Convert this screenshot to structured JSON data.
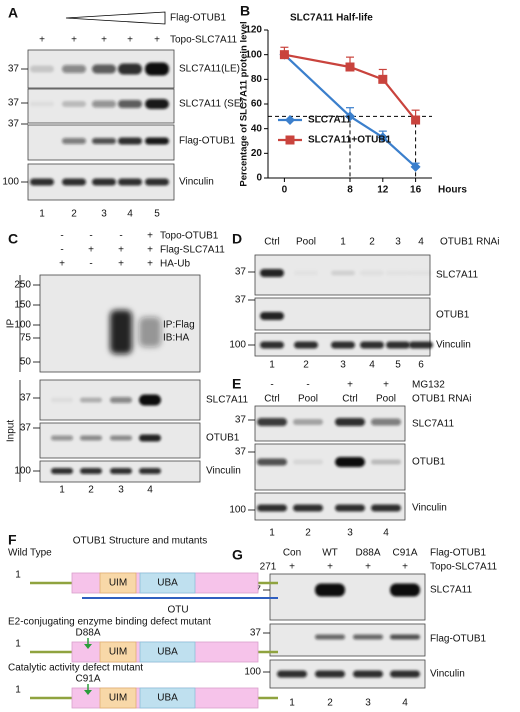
{
  "panels": {
    "A": {
      "label": "A",
      "conditions": [
        {
          "name": "Flag-OTUB1"
        },
        {
          "name": "Topo-SLC7A11",
          "values": [
            "+",
            "+",
            "+",
            "+",
            "+"
          ]
        }
      ],
      "markers": [
        "37",
        "37",
        "37",
        "100"
      ],
      "blots": [
        "SLC7A11(LE)",
        "SLC7A11 (SE)",
        "Flag-OTUB1",
        "Vinculin"
      ],
      "lanes": [
        "1",
        "2",
        "3",
        "4",
        "5"
      ]
    },
    "C": {
      "label": "C",
      "conditions": [
        {
          "name": "Topo-OTUB1",
          "values": [
            "-",
            "-",
            "-",
            "+"
          ]
        },
        {
          "name": "Flag-SLC7A11",
          "values": [
            "-",
            "+",
            "+",
            "+"
          ]
        },
        {
          "name": "HA-Ub",
          "values": [
            "+",
            "-",
            "+",
            "+"
          ]
        }
      ],
      "groups": [
        "IP",
        "Input"
      ],
      "annotations": [
        "IP:Flag",
        "IB:HA"
      ],
      "markers": [
        "250",
        "150",
        "100",
        "75",
        "50",
        "37",
        "37",
        "100"
      ],
      "blots": [
        "SLC7A11",
        "OTUB1",
        "Vinculin"
      ],
      "lanes": [
        "1",
        "2",
        "3",
        "4"
      ]
    },
    "D": {
      "label": "D",
      "conditions": [
        {
          "name": "OTUB1 RNAi",
          "values": [
            "Ctrl",
            "Pool",
            "1",
            "2",
            "3",
            "4"
          ]
        }
      ],
      "markers": [
        "37",
        "37",
        "100"
      ],
      "blots": [
        "SLC7A11",
        "OTUB1",
        "Vinculin"
      ],
      "lanes": [
        "1",
        "2",
        "3",
        "4",
        "5",
        "6"
      ]
    },
    "E": {
      "label": "E",
      "conditions": [
        {
          "name": "MG132",
          "values": [
            "-",
            "-",
            "+",
            "+"
          ]
        },
        {
          "name": "OTUB1 RNAi",
          "values": [
            "Ctrl",
            "Pool",
            "Ctrl",
            "Pool"
          ]
        }
      ],
      "markers": [
        "37",
        "37",
        "100"
      ],
      "blots": [
        "SLC7A11",
        "OTUB1",
        "Vinculin"
      ],
      "lanes": [
        "1",
        "2",
        "3",
        "4"
      ]
    },
    "F": {
      "label": "F",
      "title": "OTUB1 Structure and mutants",
      "constructs": [
        {
          "name": "Wild Type",
          "start": 1,
          "end": 271,
          "domains": [
            "UIM",
            "UBA"
          ],
          "region": "OTU"
        },
        {
          "name": "E2-conjugating enzyme  binding defect mutant",
          "start": 1,
          "mutation": "D88A",
          "domains": [
            "UIM",
            "UBA"
          ]
        },
        {
          "name": "Catalytic activity defect mutant",
          "start": 1,
          "mutation": "C91A",
          "domains": [
            "UIM",
            "UBA"
          ]
        }
      ]
    },
    "G": {
      "label": "G",
      "conditions": [
        {
          "name": "Flag-OTUB1",
          "values": [
            "Con",
            "WT",
            "D88A",
            "C91A"
          ]
        },
        {
          "name": "Topo-SLC7A11",
          "values": [
            "+",
            "+",
            "+",
            "+"
          ]
        }
      ],
      "markers": [
        "37",
        "37",
        "100"
      ],
      "blots": [
        "SLC7A11",
        "Flag-OTUB1",
        "Vinculin"
      ],
      "lanes": [
        "1",
        "2",
        "3",
        "4"
      ]
    }
  },
  "chart_data": {
    "type": "line",
    "panel_label": "B",
    "title": "SLC7A11 Half-life",
    "ylabel": "Percentage of SLC7A11 protein level",
    "xlabel": "Hours",
    "x": [
      0,
      8,
      12,
      16
    ],
    "xlim": [
      -2,
      18
    ],
    "xticks": [
      0,
      8,
      12,
      16
    ],
    "ylim": [
      0,
      120
    ],
    "yticks": [
      0,
      20,
      40,
      60,
      80,
      100,
      120
    ],
    "series": [
      {
        "name": "SLC7A11",
        "color": "#3b7fcc",
        "marker": "diamond",
        "values": [
          100,
          50,
          33,
          9
        ],
        "errors": [
          0,
          7,
          5,
          3
        ]
      },
      {
        "name": "SLC7A11+OTUB1",
        "color": "#c9433d",
        "marker": "square",
        "values": [
          100,
          90,
          80,
          47
        ],
        "errors": [
          6,
          8,
          8,
          8
        ]
      }
    ],
    "reference_lines": {
      "y": 50,
      "x": [
        8,
        16
      ]
    },
    "legend": "lower left"
  }
}
